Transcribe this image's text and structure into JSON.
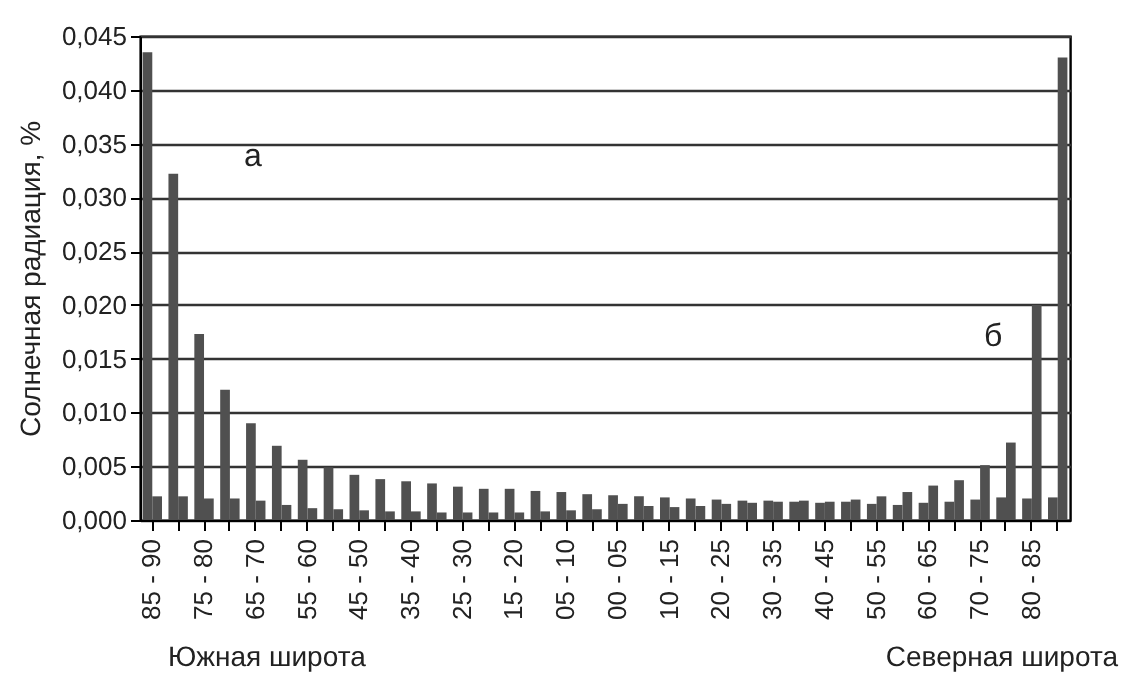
{
  "chart_data": {
    "type": "bar",
    "ylabel": "Солнечная радиация, %",
    "categories": [
      "85 - 90",
      null,
      "75 - 80",
      null,
      "65 - 70",
      null,
      "55 - 60",
      null,
      "45 - 50",
      null,
      "35 - 40",
      null,
      "25 - 30",
      null,
      "15 - 20",
      null,
      "05 - 10",
      null,
      "00 - 05",
      null,
      "10 - 15",
      null,
      "20 - 25",
      null,
      "30 - 35",
      null,
      "40 - 45",
      null,
      "50 - 55",
      null,
      "60 - 65",
      null,
      "70 - 75",
      null,
      "80 - 85",
      null
    ],
    "series": [
      {
        "color": "#505050",
        "values": [
          0.0435,
          0.0322,
          0.0173,
          0.0121,
          0.009,
          0.0069,
          0.0056,
          0.0049,
          0.0042,
          0.0038,
          0.0036,
          0.0034,
          0.0031,
          0.0029,
          0.0029,
          0.0027,
          0.0026,
          0.0024,
          0.0023,
          0.0022,
          0.0021,
          0.002,
          0.0019,
          0.0018,
          0.0018,
          0.0017,
          0.0016,
          0.0017,
          0.0015,
          0.0014,
          0.0016,
          0.0017,
          0.0019,
          0.0021,
          0.002,
          0.0021
        ]
      },
      {
        "color": "#505050",
        "values": [
          0.0022,
          0.0022,
          0.002,
          0.002,
          0.0018,
          0.0014,
          0.0011,
          0.001,
          0.0009,
          0.0008,
          0.0008,
          0.0007,
          0.0007,
          0.0007,
          0.0007,
          0.0008,
          0.0009,
          0.001,
          0.0015,
          0.0013,
          0.0012,
          0.0013,
          0.0015,
          0.0016,
          0.0017,
          0.0018,
          0.0017,
          0.0019,
          0.0022,
          0.0026,
          0.0032,
          0.0037,
          0.0051,
          0.0072,
          0.02,
          0.043
        ]
      }
    ],
    "ylim": [
      0,
      0.045
    ],
    "yticks": [
      {
        "value": 0,
        "label": "0,000"
      },
      {
        "value": 0.005,
        "label": "0,005"
      },
      {
        "value": 0.01,
        "label": "0,010"
      },
      {
        "value": 0.015,
        "label": "0,015"
      },
      {
        "value": 0.02,
        "label": "0,020"
      },
      {
        "value": 0.025,
        "label": "0,025"
      },
      {
        "value": 0.03,
        "label": "0,030"
      },
      {
        "value": 0.035,
        "label": "0,035"
      },
      {
        "value": 0.04,
        "label": "0,040"
      },
      {
        "value": 0.045,
        "label": "0,045"
      }
    ],
    "grid": "y",
    "annotations": [
      "а",
      "б",
      "Южная широта",
      "Северная широта"
    ]
  }
}
